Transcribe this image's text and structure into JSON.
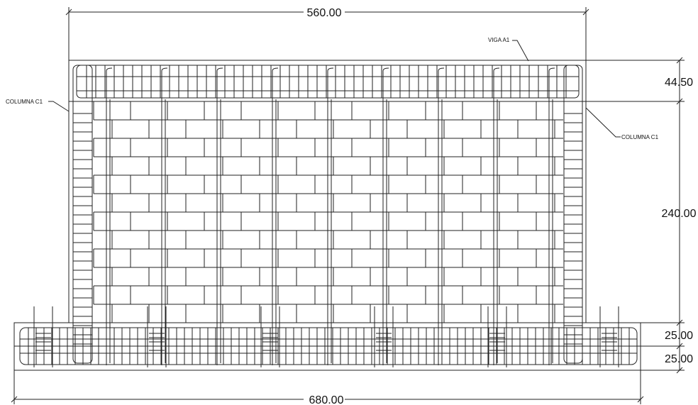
{
  "dimensions": {
    "total_width_top": "560.00",
    "beam_height": "44.50",
    "wall_height": "240.00",
    "footing_upper": "25.00",
    "footing_lower": "25.00",
    "total_width_bottom": "680.00"
  },
  "labels": {
    "beam": "VIGA A1",
    "column_left": "COLUMNA C1",
    "column_right": "COLUMNA C1"
  }
}
